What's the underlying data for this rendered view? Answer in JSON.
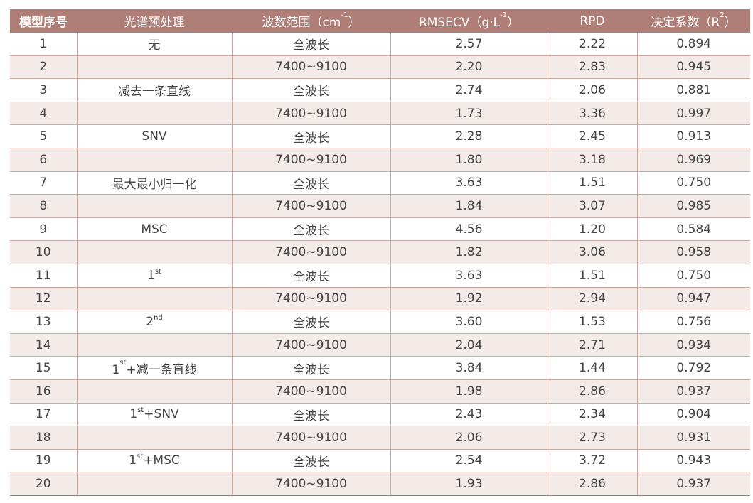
{
  "header": {
    "col1": "模型序号",
    "col2": "光谱预处理",
    "col3": {
      "text": "波数范围（cm",
      "sup": "-1",
      "end": "）"
    },
    "col4": {
      "text": "RMSECV（g·L",
      "sup": "-1",
      "end": "）"
    },
    "col5": "RPD",
    "col6": {
      "text": "决定系数（R",
      "sup": "2",
      "end": "）"
    }
  },
  "rows": [
    {
      "id": "1",
      "pre": {
        "base": "无",
        "sup": "",
        "rest": ""
      },
      "range": "全波长",
      "rmsecv": "2.57",
      "rpd": "2.22",
      "r2": "0.894"
    },
    {
      "id": "2",
      "pre": {
        "base": "",
        "sup": "",
        "rest": ""
      },
      "range": "7400~9100",
      "rmsecv": "2.20",
      "rpd": "2.83",
      "r2": "0.945"
    },
    {
      "id": "3",
      "pre": {
        "base": "减去一条直线",
        "sup": "",
        "rest": ""
      },
      "range": "全波长",
      "rmsecv": "2.74",
      "rpd": "2.06",
      "r2": "0.881"
    },
    {
      "id": "4",
      "pre": {
        "base": "",
        "sup": "",
        "rest": ""
      },
      "range": "7400~9100",
      "rmsecv": "1.73",
      "rpd": "3.36",
      "r2": "0.997"
    },
    {
      "id": "5",
      "pre": {
        "base": "SNV",
        "sup": "",
        "rest": ""
      },
      "range": "全波长",
      "rmsecv": "2.28",
      "rpd": "2.45",
      "r2": "0.913"
    },
    {
      "id": "6",
      "pre": {
        "base": "",
        "sup": "",
        "rest": ""
      },
      "range": "7400~9100",
      "rmsecv": "1.80",
      "rpd": "3.18",
      "r2": "0.969"
    },
    {
      "id": "7",
      "pre": {
        "base": "最大最小归一化",
        "sup": "",
        "rest": ""
      },
      "range": "全波长",
      "rmsecv": "3.63",
      "rpd": "1.51",
      "r2": "0.750"
    },
    {
      "id": "8",
      "pre": {
        "base": "",
        "sup": "",
        "rest": ""
      },
      "range": "7400~9100",
      "rmsecv": "1.84",
      "rpd": "3.07",
      "r2": "0.985"
    },
    {
      "id": "9",
      "pre": {
        "base": "MSC",
        "sup": "",
        "rest": ""
      },
      "range": "全波长",
      "rmsecv": "4.56",
      "rpd": "1.20",
      "r2": "0.584"
    },
    {
      "id": "10",
      "pre": {
        "base": "",
        "sup": "",
        "rest": ""
      },
      "range": "7400~9100",
      "rmsecv": "1.82",
      "rpd": "3.06",
      "r2": "0.958"
    },
    {
      "id": "11",
      "pre": {
        "base": "1",
        "sup": "st",
        "rest": ""
      },
      "range": "全波长",
      "rmsecv": "3.63",
      "rpd": "1.51",
      "r2": "0.750"
    },
    {
      "id": "12",
      "pre": {
        "base": "",
        "sup": "",
        "rest": ""
      },
      "range": "7400~9100",
      "rmsecv": "1.92",
      "rpd": "2.94",
      "r2": "0.947"
    },
    {
      "id": "13",
      "pre": {
        "base": "2",
        "sup": "nd",
        "rest": ""
      },
      "range": "全波长",
      "rmsecv": "3.60",
      "rpd": "1.53",
      "r2": "0.756"
    },
    {
      "id": "14",
      "pre": {
        "base": "",
        "sup": "",
        "rest": ""
      },
      "range": "7400~9100",
      "rmsecv": "2.04",
      "rpd": "2.71",
      "r2": "0.934"
    },
    {
      "id": "15",
      "pre": {
        "base": "1",
        "sup": "st",
        "rest": "+减一条直线"
      },
      "range": "全波长",
      "rmsecv": "3.84",
      "rpd": "1.44",
      "r2": "0.792"
    },
    {
      "id": "16",
      "pre": {
        "base": "",
        "sup": "",
        "rest": ""
      },
      "range": "7400~9100",
      "rmsecv": "1.98",
      "rpd": "2.86",
      "r2": "0.937"
    },
    {
      "id": "17",
      "pre": {
        "base": "1",
        "sup": "st",
        "rest": "+SNV"
      },
      "range": "全波长",
      "rmsecv": "2.43",
      "rpd": "2.34",
      "r2": "0.904"
    },
    {
      "id": "18",
      "pre": {
        "base": "",
        "sup": "",
        "rest": ""
      },
      "range": "7400~9100",
      "rmsecv": "2.06",
      "rpd": "2.73",
      "r2": "0.931"
    },
    {
      "id": "19",
      "pre": {
        "base": "1",
        "sup": "st",
        "rest": "+MSC"
      },
      "range": "全波长",
      "rmsecv": "2.54",
      "rpd": "3.72",
      "r2": "0.943"
    },
    {
      "id": "20",
      "pre": {
        "base": "",
        "sup": "",
        "rest": ""
      },
      "range": "7400~9100",
      "rmsecv": "1.93",
      "rpd": "2.86",
      "r2": "0.937"
    }
  ],
  "colors": {
    "header_bg": "#af7e77",
    "alt_row": "#f3ebe8",
    "border": "#c8a6a1"
  }
}
